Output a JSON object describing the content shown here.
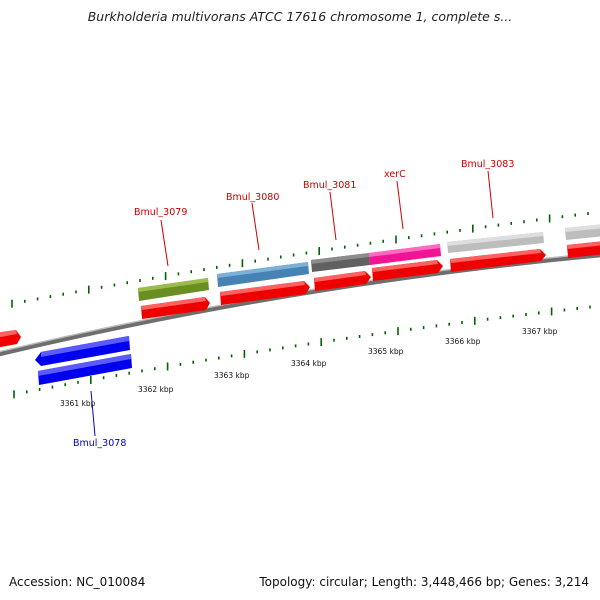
{
  "title": "Burkholderia multivorans ATCC 17616 chromosome 1, complete s...",
  "footer": {
    "accession": "Accession: NC_010084",
    "summary": "Topology: circular; Length: 3,448,466 bp; Genes: 3,214"
  },
  "colors": {
    "cds_red": "#ee0000",
    "gene_olive": "#6b8e23",
    "gene_steelblue": "#4682b4",
    "gene_dimgray": "#606060",
    "gene_deeppink": "#ee1493",
    "gene_lightgray": "#bdbdbd",
    "gene_blue": "#0000ee",
    "tick_green": "#006400",
    "label_red": "#cc0000",
    "label_blue": "#0000cc",
    "backbone_gray": "#808080"
  },
  "scale": {
    "ticks_kbp": [
      "3361 kbp",
      "3362 kbp",
      "3363 kbp",
      "3364 kbp",
      "3365 kbp",
      "3366 kbp",
      "3367 kbp"
    ]
  },
  "genes": [
    {
      "name": "Bmul_3078",
      "strand": "reverse",
      "color": "blue"
    },
    {
      "name": "Bmul_3079",
      "strand": "forward",
      "color": "olive"
    },
    {
      "name": "Bmul_3080",
      "strand": "forward",
      "color": "steelblue"
    },
    {
      "name": "Bmul_3081",
      "strand": "forward",
      "color": "dimgray"
    },
    {
      "name": "xerC",
      "strand": "forward",
      "color": "deeppink"
    },
    {
      "name": "Bmul_3083",
      "strand": "forward",
      "color": "lightgray"
    }
  ]
}
